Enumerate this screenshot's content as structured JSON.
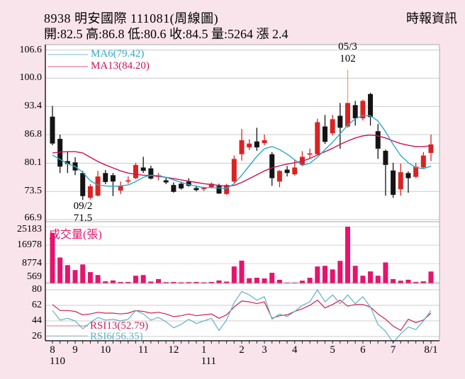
{
  "header": {
    "title": "8938  明安國際 111081(周線圖)",
    "source": "時報資訊",
    "quote_segments": [
      "開:82.5",
      "高:86.8",
      "低:80.6",
      "收:84.5",
      "量:5264",
      "漲 2.4"
    ]
  },
  "colors": {
    "background": "#f9e4ec",
    "pane_bg": "#ffffff",
    "grid": "#cccccc",
    "border": "#aaaaaa",
    "axis": "#222222",
    "up_candle": "#d92323",
    "down_candle": "#141414",
    "ma6": "#2ea8c4",
    "ma13": "#cc1155",
    "volume_bar": "#e5146e",
    "rsi6": "#5fb3c6",
    "rsi13": "#cc2255",
    "high_wick": "#eda265",
    "text": "#000000"
  },
  "chart_data": {
    "type": "candlestick",
    "title": "8938 明安國際 111081(周線圖)",
    "price_pane": {
      "y_ticks": [
        106.6,
        100.0,
        93.4,
        86.8,
        80.1,
        73.5,
        66.9
      ],
      "candles": [
        [
          91.0,
          93.5,
          84.3,
          84.7
        ],
        [
          85.8,
          86.8,
          77.8,
          79.3
        ],
        [
          80.6,
          82.7,
          77.8,
          79.9
        ],
        [
          80.3,
          81.5,
          77.3,
          78.4
        ],
        [
          77.8,
          78.3,
          71.5,
          72.4
        ],
        [
          72.0,
          75.2,
          71.6,
          74.7
        ],
        [
          72.5,
          78.3,
          72.3,
          77.0
        ],
        [
          77.8,
          78.5,
          75.2,
          75.7
        ],
        [
          77.3,
          77.8,
          72.4,
          75.8
        ],
        [
          73.7,
          75.8,
          72.9,
          74.8
        ],
        [
          75.8,
          77.0,
          75.3,
          76.1
        ],
        [
          76.6,
          80.2,
          76.4,
          79.7
        ],
        [
          79.1,
          81.6,
          77.8,
          78.3
        ],
        [
          78.9,
          79.5,
          76.3,
          76.5
        ],
        [
          76.9,
          77.8,
          76.1,
          77.3
        ],
        [
          76.1,
          76.8,
          75.2,
          75.6
        ],
        [
          75.0,
          75.6,
          73.2,
          73.4
        ],
        [
          75.3,
          75.8,
          73.9,
          74.2
        ],
        [
          75.8,
          76.6,
          74.6,
          74.8
        ],
        [
          74.3,
          74.9,
          73.5,
          73.8
        ],
        [
          74.0,
          74.6,
          73.6,
          74.3
        ],
        [
          74.5,
          75.6,
          74.2,
          75.3
        ],
        [
          74.8,
          75.3,
          72.9,
          73.0
        ],
        [
          72.9,
          75.3,
          72.7,
          75.0
        ],
        [
          75.8,
          81.9,
          75.5,
          81.1
        ],
        [
          82.2,
          88.1,
          80.7,
          85.5
        ],
        [
          83.8,
          85.7,
          83.2,
          84.7
        ],
        [
          85.2,
          88.4,
          83.0,
          83.8
        ],
        [
          84.8,
          86.8,
          84.3,
          85.5
        ],
        [
          82.2,
          82.7,
          74.8,
          76.6
        ],
        [
          75.8,
          78.5,
          74.5,
          78.3
        ],
        [
          78.6,
          79.4,
          77.0,
          77.8
        ],
        [
          77.5,
          80.9,
          77.2,
          79.1
        ],
        [
          79.7,
          82.9,
          79.4,
          81.6
        ],
        [
          82.1,
          83.5,
          81.1,
          82.4
        ],
        [
          82.2,
          90.5,
          81.9,
          89.7
        ],
        [
          88.7,
          91.4,
          84.6,
          85.1
        ],
        [
          87.1,
          91.4,
          86.6,
          90.4
        ],
        [
          91.2,
          94.2,
          83.5,
          88.4
        ],
        [
          88.7,
          102.0,
          88.4,
          94.2
        ],
        [
          93.7,
          94.7,
          88.9,
          90.6
        ],
        [
          90.6,
          95.0,
          90.1,
          94.7
        ],
        [
          96.3,
          96.6,
          88.9,
          90.9
        ],
        [
          87.6,
          89.3,
          81.1,
          83.5
        ],
        [
          83.0,
          83.3,
          72.5,
          79.7
        ],
        [
          78.4,
          80.2,
          72.0,
          72.7
        ],
        [
          74.0,
          80.0,
          72.5,
          78.0
        ],
        [
          77.8,
          78.2,
          73.2,
          76.6
        ],
        [
          76.9,
          80.2,
          76.6,
          79.3
        ],
        [
          79.1,
          82.7,
          78.9,
          81.9
        ],
        [
          82.5,
          86.8,
          80.6,
          84.5
        ]
      ],
      "ma6": {
        "label": "MA6(79.42)",
        "values": [
          82.0,
          81.0,
          80.0,
          79.3,
          78.0,
          76.0,
          75.0,
          74.8,
          74.7,
          74.8,
          75.0,
          75.8,
          76.8,
          77.3,
          77.2,
          76.8,
          76.2,
          75.6,
          75.1,
          74.7,
          74.4,
          74.4,
          74.3,
          74.2,
          75.3,
          77.3,
          79.5,
          81.7,
          83.5,
          84.0,
          83.3,
          82.2,
          80.9,
          79.6,
          80.1,
          81.5,
          83.3,
          85.0,
          87.0,
          89.0,
          90.5,
          91.3,
          91.2,
          90.0,
          87.5,
          84.5,
          81.9,
          80.2,
          79.1,
          78.8,
          79.4
        ]
      },
      "ma13": {
        "label": "MA13(84.20)",
        "values": [
          82.5,
          82.7,
          82.8,
          82.8,
          82.5,
          81.5,
          80.5,
          79.7,
          79.0,
          78.3,
          77.8,
          77.5,
          77.3,
          77.2,
          77.0,
          76.8,
          76.5,
          76.2,
          75.9,
          75.6,
          75.3,
          75.1,
          74.9,
          74.7,
          74.9,
          75.6,
          76.5,
          77.4,
          78.3,
          79.0,
          79.5,
          79.9,
          80.2,
          80.6,
          81.2,
          82.0,
          82.8,
          83.6,
          84.5,
          85.3,
          86.0,
          86.5,
          86.7,
          86.5,
          86.0,
          85.3,
          84.7,
          84.3,
          84.0,
          84.0,
          84.2
        ]
      },
      "annotations": {
        "high": {
          "index": 39,
          "line1": "05/3",
          "line2": "102"
        },
        "low": {
          "index": 4,
          "line1": "09/2",
          "line2": "71.5"
        }
      }
    },
    "volume_pane": {
      "title": "成交量(張)",
      "y_ticks": [
        25183,
        16978,
        8774,
        569
      ],
      "values": [
        22400,
        11500,
        8100,
        5900,
        8400,
        5000,
        3700,
        900,
        1300,
        600,
        600,
        3400,
        3700,
        800,
        1900,
        500,
        600,
        400,
        500,
        600,
        400,
        600,
        1300,
        800,
        7500,
        10100,
        2300,
        2500,
        2200,
        4700,
        1600,
        300,
        300,
        1200,
        2500,
        7500,
        7800,
        6200,
        10000,
        25183,
        7800,
        3400,
        5300,
        3400,
        9300,
        1900,
        1200,
        1600,
        600,
        900,
        5264
      ]
    },
    "rsi_pane": {
      "y_ticks": [
        80,
        62,
        44,
        26
      ],
      "rsi13": {
        "label": "RSI13(52.79)",
        "values": [
          63,
          56,
          56,
          55,
          51,
          52,
          54,
          53,
          53,
          52,
          53,
          56,
          55,
          53,
          54,
          52,
          49,
          50,
          52,
          50,
          51,
          52,
          47,
          51,
          60,
          67,
          66,
          64,
          66,
          47,
          50,
          51,
          55,
          58,
          62,
          68,
          59,
          63,
          68,
          61,
          63,
          63,
          60,
          52,
          46,
          38,
          33,
          46,
          42,
          45,
          53
        ]
      },
      "rsi6": {
        "label": "RSI6(56.35)",
        "values": [
          56,
          45,
          47,
          44,
          35,
          42,
          48,
          45,
          46,
          44,
          46,
          56,
          52,
          45,
          48,
          43,
          36,
          40,
          46,
          41,
          44,
          47,
          33,
          45,
          65,
          78,
          74,
          68,
          72,
          46,
          52,
          49,
          55,
          62,
          66,
          80,
          66,
          74,
          64,
          74,
          64,
          72,
          60,
          40,
          32,
          19,
          29,
          37,
          34,
          44,
          56
        ]
      }
    },
    "x_axis": {
      "month_ticks": [
        {
          "index": 0,
          "label": "8"
        },
        {
          "index": 3,
          "label": "9"
        },
        {
          "index": 7,
          "label": "10"
        },
        {
          "index": 12,
          "label": "11"
        },
        {
          "index": 16,
          "label": "12"
        },
        {
          "index": 20,
          "label": "1"
        },
        {
          "index": 25,
          "label": "2"
        },
        {
          "index": 28,
          "label": "3"
        },
        {
          "index": 32,
          "label": "4"
        },
        {
          "index": 37,
          "label": "5"
        },
        {
          "index": 41,
          "label": "6"
        },
        {
          "index": 45,
          "label": "7"
        },
        {
          "index": 50,
          "label": "8/1"
        }
      ],
      "year_labels": [
        {
          "index": 0,
          "label": "110"
        },
        {
          "index": 20,
          "label": "111"
        }
      ]
    }
  }
}
